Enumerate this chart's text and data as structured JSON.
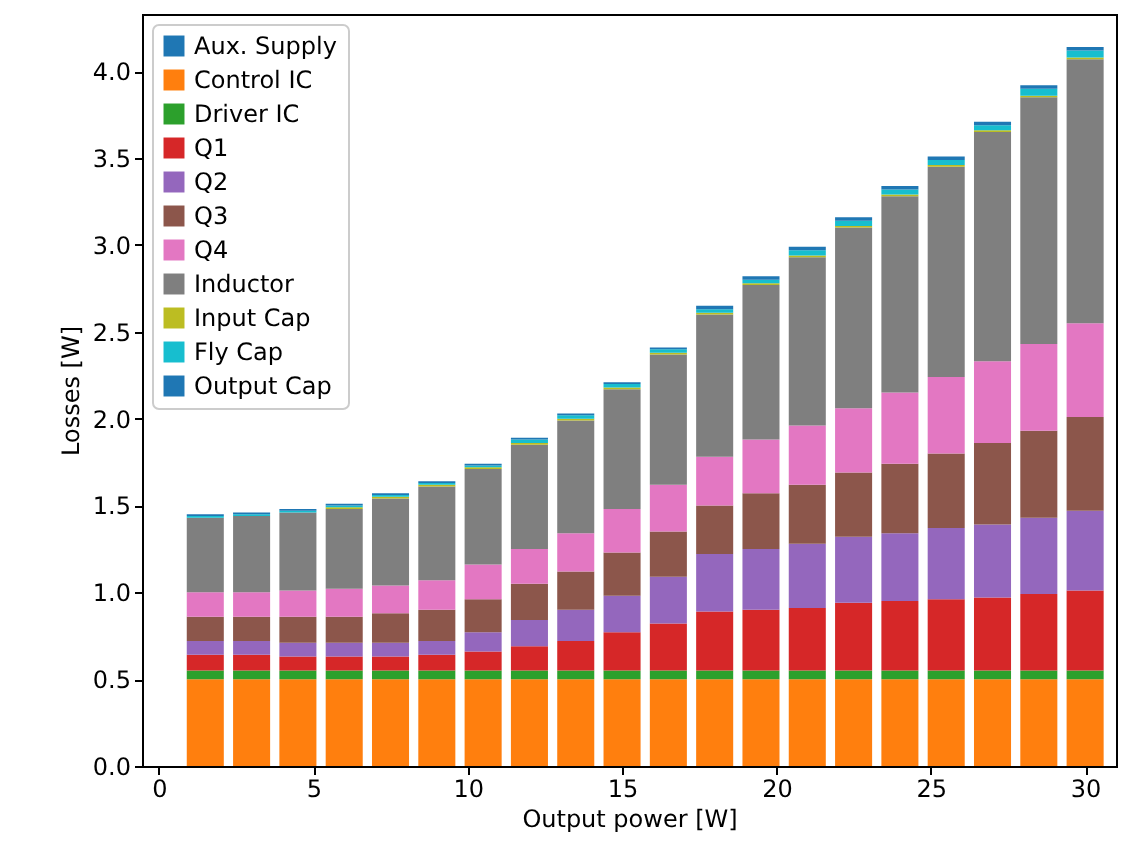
{
  "chart_data": {
    "type": "bar",
    "stacked": true,
    "xlabel": "Output power [W]",
    "ylabel": "Losses [W]",
    "x": [
      1.5,
      3,
      4.5,
      6,
      7.5,
      9,
      10.5,
      12,
      13.5,
      15,
      16.5,
      18,
      19.5,
      21,
      22.5,
      24,
      25.5,
      27,
      28.5,
      30
    ],
    "xlim": [
      -0.55,
      31
    ],
    "xticks": [
      0,
      5,
      10,
      15,
      20,
      25,
      30
    ],
    "ylim": [
      0,
      4.33
    ],
    "yticks": [
      {
        "value": 0,
        "label": "0.0"
      },
      {
        "value": 0.5,
        "label": "0.5"
      },
      {
        "value": 1,
        "label": "1.0"
      },
      {
        "value": 1.5,
        "label": "1.5"
      },
      {
        "value": 2,
        "label": "2.0"
      },
      {
        "value": 2.5,
        "label": "2.5"
      },
      {
        "value": 3,
        "label": "3.0"
      },
      {
        "value": 3.5,
        "label": "3.5"
      },
      {
        "value": 4,
        "label": "4.0"
      }
    ],
    "grid": false,
    "legend": "top left",
    "series": [
      {
        "name": "Aux. Supply",
        "color": "#1f77b4",
        "values": [
          null,
          null,
          null,
          null,
          null,
          null,
          null,
          null,
          null,
          null,
          null,
          null,
          null,
          null,
          null,
          null,
          null,
          null,
          null,
          null
        ]
      },
      {
        "name": "Control IC",
        "color": "#ff7f0e",
        "values": [
          0.5,
          0.5,
          0.5,
          0.5,
          0.5,
          0.5,
          0.5,
          0.5,
          0.5,
          0.5,
          0.5,
          0.5,
          0.5,
          0.5,
          0.5,
          0.5,
          0.5,
          0.5,
          0.5,
          0.5
        ]
      },
      {
        "name": "Driver IC",
        "color": "#2ca02c",
        "values": [
          0.05,
          0.05,
          0.05,
          0.05,
          0.05,
          0.05,
          0.05,
          0.05,
          0.05,
          0.05,
          0.05,
          0.05,
          0.05,
          0.05,
          0.05,
          0.05,
          0.05,
          0.05,
          0.05,
          0.05
        ]
      },
      {
        "name": "Q1",
        "color": "#d62728",
        "values": [
          0.09,
          0.09,
          0.08,
          0.08,
          0.08,
          0.09,
          0.11,
          0.14,
          0.17,
          0.22,
          0.27,
          0.34,
          0.35,
          0.36,
          0.39,
          0.4,
          0.41,
          0.42,
          0.44,
          0.46
        ]
      },
      {
        "name": "Q2",
        "color": "#9467bd",
        "values": [
          0.08,
          0.08,
          0.08,
          0.08,
          0.08,
          0.08,
          0.11,
          0.15,
          0.18,
          0.21,
          0.27,
          0.33,
          0.35,
          0.37,
          0.38,
          0.39,
          0.41,
          0.42,
          0.44,
          0.46
        ]
      },
      {
        "name": "Q3",
        "color": "#8c564b",
        "values": [
          0.14,
          0.14,
          0.15,
          0.15,
          0.17,
          0.18,
          0.19,
          0.21,
          0.22,
          0.25,
          0.26,
          0.28,
          0.32,
          0.34,
          0.37,
          0.4,
          0.43,
          0.47,
          0.5,
          0.54
        ]
      },
      {
        "name": "Q4",
        "color": "#e377c2",
        "values": [
          0.14,
          0.14,
          0.15,
          0.16,
          0.16,
          0.17,
          0.2,
          0.2,
          0.22,
          0.25,
          0.27,
          0.28,
          0.31,
          0.34,
          0.37,
          0.41,
          0.44,
          0.47,
          0.5,
          0.54
        ]
      },
      {
        "name": "Inductor",
        "color": "#7f7f7f",
        "values": [
          0.43,
          0.44,
          0.45,
          0.46,
          0.5,
          0.54,
          0.55,
          0.6,
          0.65,
          0.69,
          0.75,
          0.82,
          0.89,
          0.97,
          1.04,
          1.13,
          1.21,
          1.32,
          1.42,
          1.52
        ]
      },
      {
        "name": "Input Cap",
        "color": "#bcbd22",
        "values": [
          0,
          0,
          0,
          0.01,
          0.01,
          0.01,
          0.01,
          0.01,
          0.01,
          0.01,
          0.01,
          0.01,
          0.01,
          0.01,
          0.01,
          0.01,
          0.01,
          0.01,
          0.01,
          0.01
        ]
      },
      {
        "name": "Fly Cap",
        "color": "#17becf",
        "values": [
          0.01,
          0.01,
          0.01,
          0.01,
          0.01,
          0.01,
          0.01,
          0.02,
          0.02,
          0.02,
          0.02,
          0.02,
          0.02,
          0.03,
          0.03,
          0.03,
          0.03,
          0.03,
          0.04,
          0.04
        ]
      },
      {
        "name": "Output Cap",
        "color": "#1f77b4",
        "values": [
          0.01,
          0.01,
          0.01,
          0.01,
          0.01,
          0.01,
          0.01,
          0.01,
          0.01,
          0.01,
          0.01,
          0.02,
          0.02,
          0.02,
          0.02,
          0.02,
          0.02,
          0.02,
          0.02,
          0.02
        ]
      }
    ]
  }
}
